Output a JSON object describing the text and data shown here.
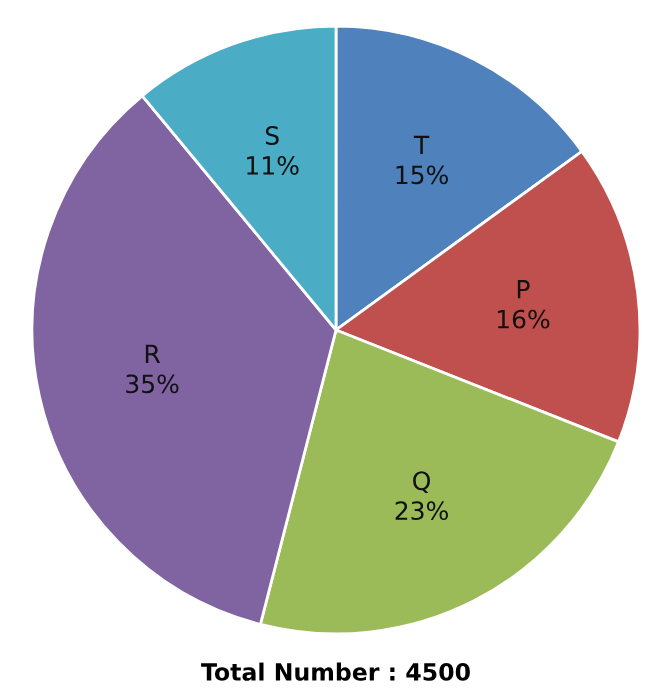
{
  "chart_data": {
    "type": "pie",
    "categories": [
      "T",
      "P",
      "Q",
      "R",
      "S"
    ],
    "values": [
      15,
      16,
      23,
      35,
      11
    ],
    "value_labels": [
      "15%",
      "16%",
      "23%",
      "35%",
      "11%"
    ],
    "colors": [
      "#4f81bd",
      "#c0504d",
      "#9bbb59",
      "#8064a2",
      "#4bacc6"
    ],
    "annotations": [
      "Total Number : 4500"
    ]
  }
}
